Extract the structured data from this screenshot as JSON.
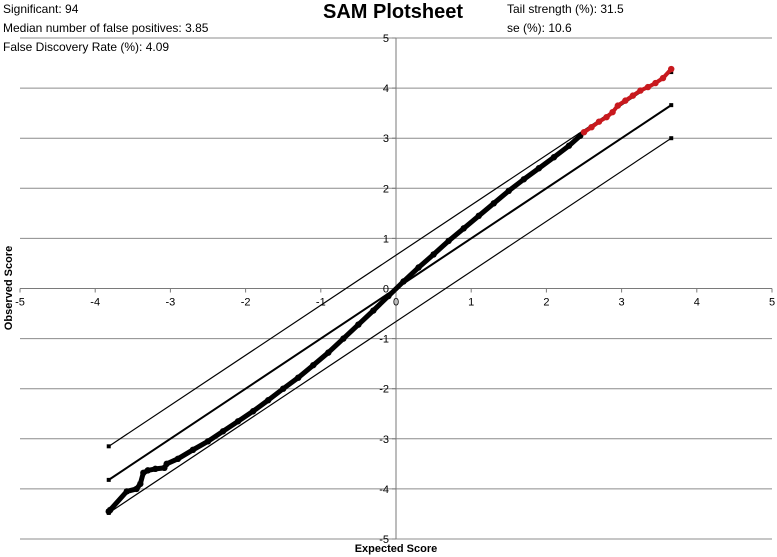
{
  "stats": {
    "significant": "Significant: 94",
    "median_false_positives": "Median number of false positives: 3.85",
    "fdr": "False Discovery Rate (%): 4.09",
    "tail_strength": "Tail strength (%): 31.5",
    "se": "se (%): 10.6"
  },
  "chart_data": {
    "type": "scatter",
    "title": "SAM Plotsheet",
    "xlabel": "Expected Score",
    "ylabel": "Observed Score",
    "xlim": [
      -5,
      5
    ],
    "ylim": [
      -5,
      5
    ],
    "x_ticks": [
      -5,
      -4,
      -3,
      -2,
      -1,
      0,
      1,
      2,
      3,
      4,
      5
    ],
    "y_ticks": [
      -5,
      -4,
      -3,
      -2,
      -1,
      0,
      1,
      2,
      3,
      4,
      5
    ],
    "x_tick_labels": [
      "-5",
      "-4",
      "-3",
      "-2",
      "-1",
      "0",
      "1",
      "2",
      "3",
      "4",
      "5"
    ],
    "y_tick_labels": [
      "-5",
      "-4",
      "-3",
      "-2",
      "-1",
      "0",
      "1",
      "2",
      "3",
      "4",
      "5"
    ],
    "grid": "horizontal",
    "colors": {
      "points": "#000000",
      "significant": "#c8191e",
      "lines": "#000000"
    },
    "series": [
      {
        "role": "observed-vs-expected",
        "points": [
          [
            -3.82,
            -4.45
          ],
          [
            -3.8,
            -4.42
          ],
          [
            -3.58,
            -4.05
          ],
          [
            -3.45,
            -4.0
          ],
          [
            -3.4,
            -3.9
          ],
          [
            -3.36,
            -3.68
          ],
          [
            -3.3,
            -3.63
          ],
          [
            -3.2,
            -3.6
          ],
          [
            -3.08,
            -3.58
          ],
          [
            -3.05,
            -3.5
          ],
          [
            -2.9,
            -3.4
          ],
          [
            -2.7,
            -3.22
          ],
          [
            -2.5,
            -3.05
          ],
          [
            -2.3,
            -2.85
          ],
          [
            -2.1,
            -2.65
          ],
          [
            -1.9,
            -2.45
          ],
          [
            -1.7,
            -2.23
          ],
          [
            -1.5,
            -2.0
          ],
          [
            -1.3,
            -1.78
          ],
          [
            -1.1,
            -1.53
          ],
          [
            -0.9,
            -1.28
          ],
          [
            -0.7,
            -1.0
          ],
          [
            -0.5,
            -0.72
          ],
          [
            -0.3,
            -0.44
          ],
          [
            -0.1,
            -0.15
          ],
          [
            0.1,
            0.14
          ],
          [
            0.3,
            0.42
          ],
          [
            0.5,
            0.68
          ],
          [
            0.7,
            0.95
          ],
          [
            0.9,
            1.2
          ],
          [
            1.1,
            1.45
          ],
          [
            1.3,
            1.7
          ],
          [
            1.5,
            1.95
          ],
          [
            1.7,
            2.18
          ],
          [
            1.9,
            2.4
          ],
          [
            2.1,
            2.62
          ],
          [
            2.3,
            2.85
          ],
          [
            2.45,
            3.05
          ]
        ]
      },
      {
        "role": "significant",
        "points": [
          [
            2.5,
            3.12
          ],
          [
            2.6,
            3.22
          ],
          [
            2.7,
            3.33
          ],
          [
            2.8,
            3.42
          ],
          [
            2.88,
            3.52
          ],
          [
            2.95,
            3.65
          ],
          [
            3.05,
            3.75
          ],
          [
            3.15,
            3.85
          ],
          [
            3.25,
            3.95
          ],
          [
            3.35,
            4.02
          ],
          [
            3.45,
            4.1
          ],
          [
            3.55,
            4.2
          ],
          [
            3.66,
            4.38
          ]
        ]
      }
    ],
    "reference_lines": [
      {
        "role": "upper-cutoff",
        "start": [
          -3.82,
          -3.15
        ],
        "end": [
          3.66,
          4.32
        ]
      },
      {
        "role": "diagonal",
        "start": [
          -3.82,
          -3.82
        ],
        "end": [
          3.66,
          3.66
        ]
      },
      {
        "role": "lower-cutoff",
        "start": [
          -3.82,
          -4.48
        ],
        "end": [
          3.66,
          3.0
        ]
      }
    ]
  }
}
